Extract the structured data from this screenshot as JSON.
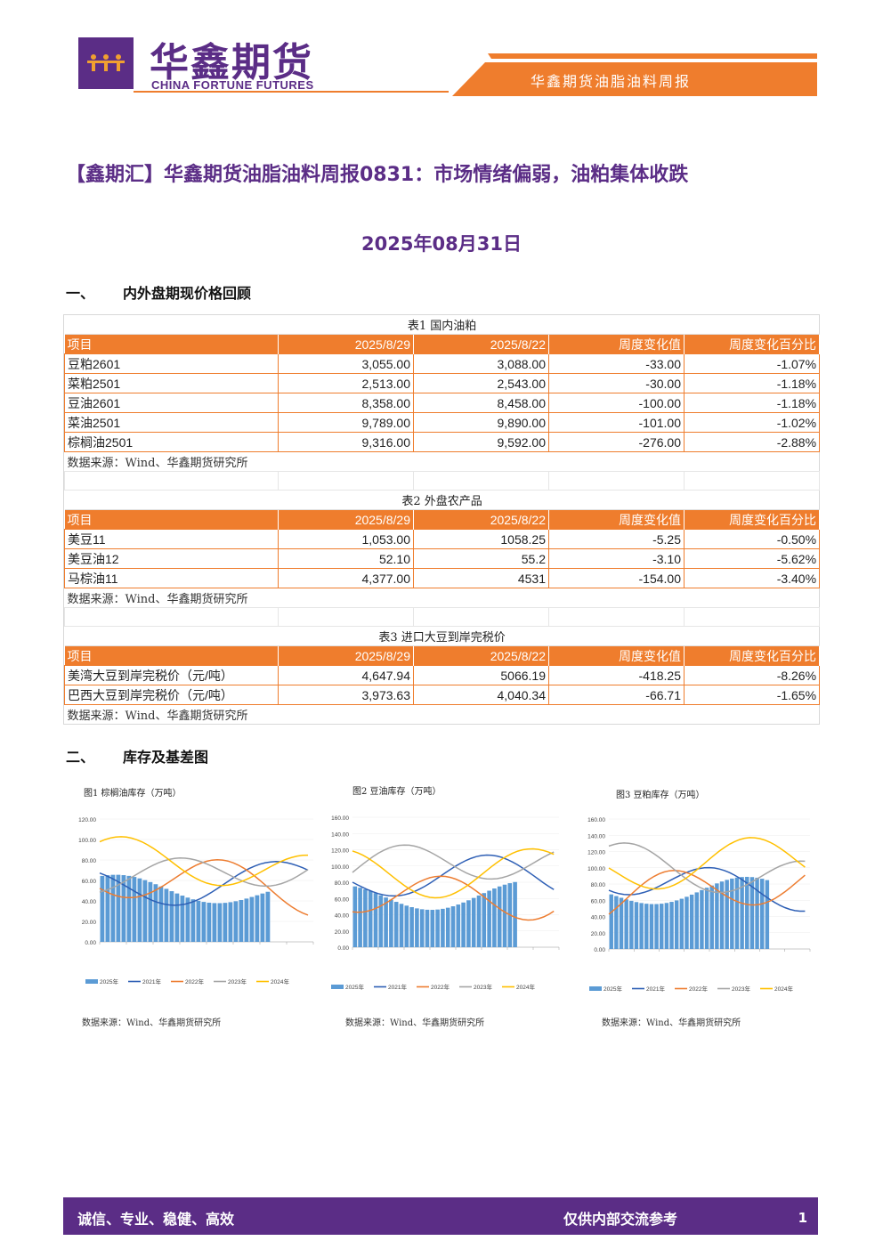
{
  "header": {
    "logo_cn": "华鑫期货",
    "logo_en": "CHINA FORTUNE FUTURES",
    "report_name": "华鑫期货油脂油料周报"
  },
  "title": "【鑫期汇】华鑫期货油脂油料周报0831：市场情绪偏弱，油粕集体收跌",
  "date": "2025年08月31日",
  "sections": {
    "s1_num": "一、",
    "s1_title": "内外盘期现价格回顾",
    "s2_num": "二、",
    "s2_title": "库存及基差图"
  },
  "columns": [
    "项目",
    "2025/8/29",
    "2025/8/22",
    "周度变化值",
    "周度变化百分比"
  ],
  "tables": [
    {
      "caption": "表1 国内油粕",
      "rows": [
        [
          "豆粕2601",
          "3,055.00",
          "3,088.00",
          "-33.00",
          "-1.07%"
        ],
        [
          "菜粕2501",
          "2,513.00",
          "2,543.00",
          "-30.00",
          "-1.18%"
        ],
        [
          "豆油2601",
          "8,358.00",
          "8,458.00",
          "-100.00",
          "-1.18%"
        ],
        [
          "菜油2501",
          "9,789.00",
          "9,890.00",
          "-101.00",
          "-1.02%"
        ],
        [
          "棕榈油2501",
          "9,316.00",
          "9,592.00",
          "-276.00",
          "-2.88%"
        ]
      ],
      "source": "数据来源：Wind、华鑫期货研究所"
    },
    {
      "caption": "表2 外盘农产品",
      "rows": [
        [
          "美豆11",
          "1,053.00",
          "1058.25",
          "-5.25",
          "-0.50%"
        ],
        [
          "美豆油12",
          "52.10",
          "55.2",
          "-3.10",
          "-5.62%"
        ],
        [
          "马棕油11",
          "4,377.00",
          "4531",
          "-154.00",
          "-3.40%"
        ]
      ],
      "source": "数据来源：Wind、华鑫期货研究所"
    },
    {
      "caption": "表3 进口大豆到岸完税价",
      "rows": [
        [
          "美湾大豆到岸完税价（元/吨）",
          "4,647.94",
          "5066.19",
          "-418.25",
          "-8.26%"
        ],
        [
          "巴西大豆到岸完税价（元/吨）",
          "3,973.63",
          "4,040.34",
          "-66.71",
          "-1.65%"
        ]
      ],
      "source": "数据来源：Wind、华鑫期货研究所"
    }
  ],
  "charts": [
    {
      "title": "图1 棕榈油库存（万吨）",
      "source": "数据来源：Wind、华鑫期货研究所",
      "yticks": [
        "120.00",
        "100.00",
        "80.00",
        "60.00",
        "40.00",
        "20.00",
        "0.00"
      ],
      "legend": [
        "2025年",
        "2021年",
        "2022年",
        "2023年",
        "2024年"
      ]
    },
    {
      "title": "图2 豆油库存（万吨）",
      "source": "数据来源：Wind、华鑫期货研究所",
      "yticks": [
        "160.00",
        "140.00",
        "120.00",
        "100.00",
        "80.00",
        "60.00",
        "40.00",
        "20.00",
        "0.00"
      ],
      "legend": [
        "2025年",
        "2021年",
        "2022年",
        "2023年",
        "2024年"
      ]
    },
    {
      "title": "图3 豆粕库存（万吨）",
      "source": "数据来源：Wind、华鑫期货研究所",
      "yticks": [
        "160.00",
        "140.00",
        "120.00",
        "100.00",
        "80.00",
        "60.00",
        "40.00",
        "20.00",
        "0.00"
      ],
      "legend": [
        "2025年",
        "2021年",
        "2022年",
        "2023年",
        "2024年"
      ]
    }
  ],
  "colors": {
    "purple": "#5b2d86",
    "orange": "#ef7d2d",
    "bar": "#5b9bd5",
    "s2021": "#2e5fb5",
    "s2022": "#ed7d31",
    "s2023": "#a5a5a5",
    "s2024": "#ffc000"
  },
  "footer": {
    "left": "诚信、专业、稳健、高效",
    "right": "仅供内部交流参考",
    "page": "1"
  }
}
